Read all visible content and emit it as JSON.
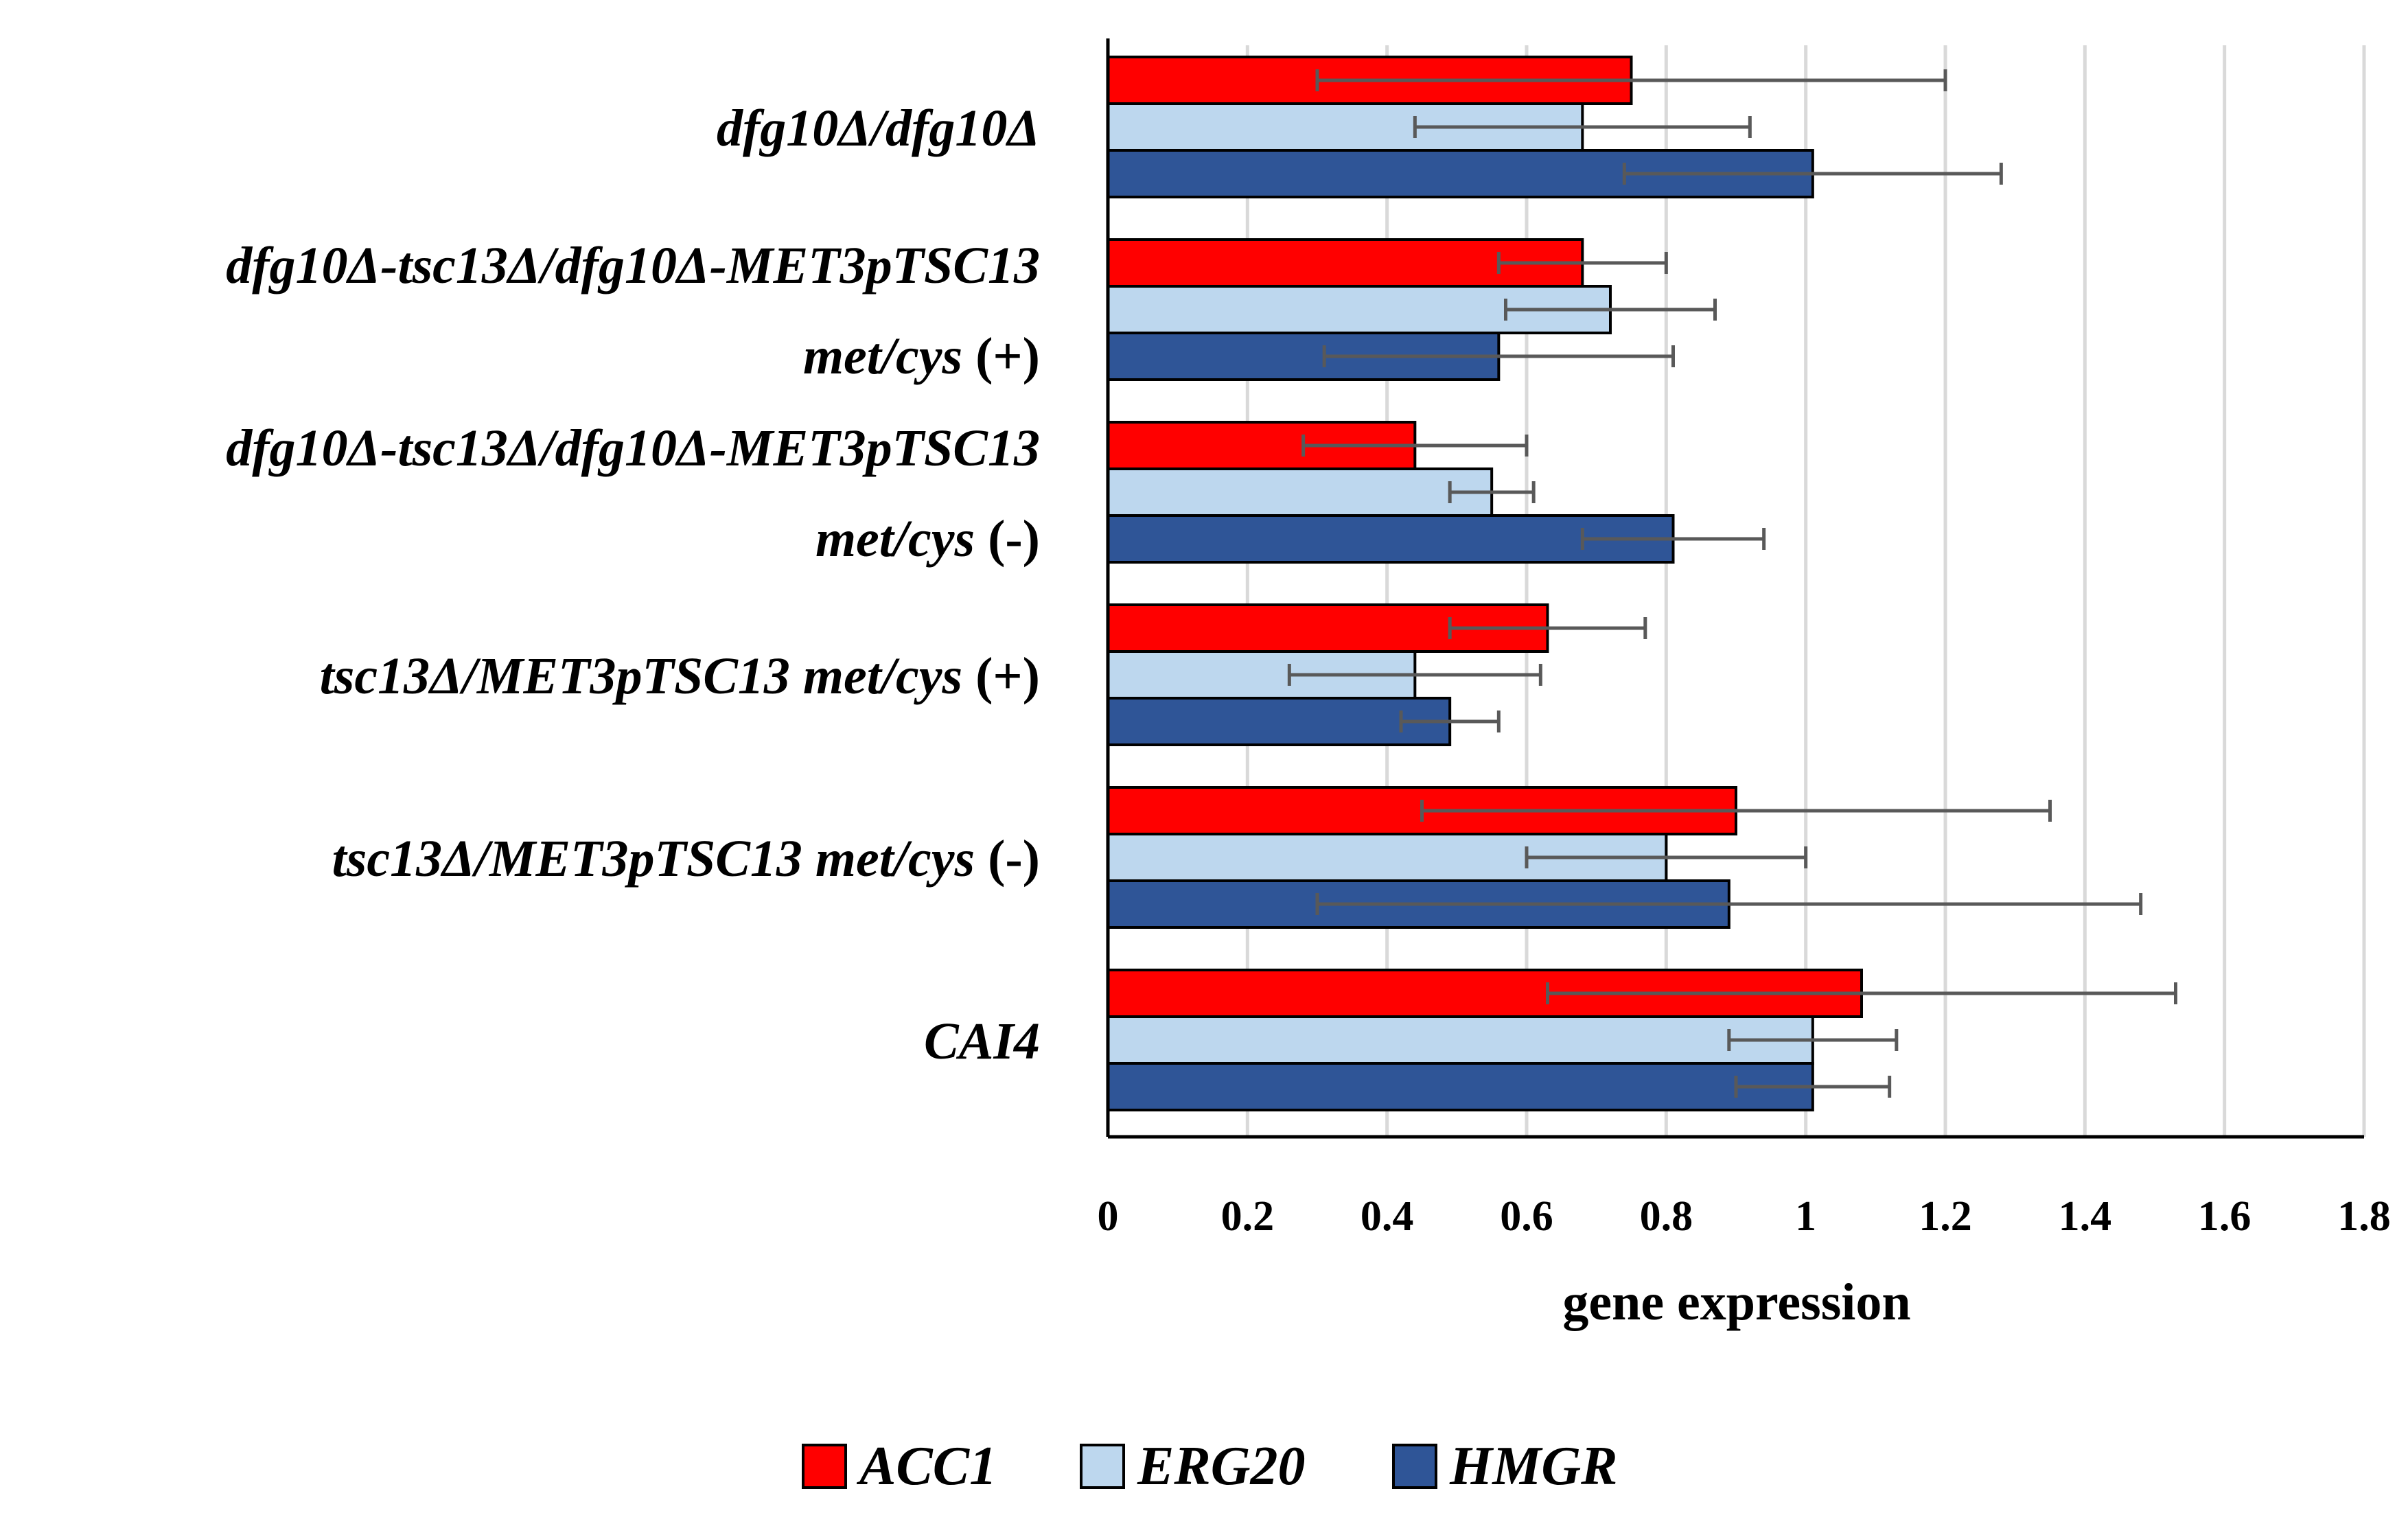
{
  "chart_data": {
    "type": "bar",
    "orientation": "horizontal",
    "title": "",
    "xlabel": "gene expression",
    "ylabel": "",
    "xlim": [
      0,
      1.8
    ],
    "xticks": [
      0,
      0.2,
      0.4,
      0.6,
      0.8,
      1,
      1.2,
      1.4,
      1.6,
      1.8
    ],
    "xtick_labels": [
      "0",
      "0.2",
      "0.4",
      "0.6",
      "0.8",
      "1",
      "1.2",
      "1.4",
      "1.6",
      "1.8"
    ],
    "grid": "vertical",
    "legend_position": "bottom-center",
    "categories": [
      {
        "lines": [
          [
            {
              "t": "dfg10Δ/dfg10Δ",
              "i": true
            }
          ]
        ]
      },
      {
        "lines": [
          [
            {
              "t": "dfg10Δ-tsc13Δ/dfg10Δ-MET3pTSC13",
              "i": true
            }
          ],
          [
            {
              "t": "met/cys ",
              "i": true
            },
            {
              "t": "(+)",
              "i": false
            }
          ]
        ]
      },
      {
        "lines": [
          [
            {
              "t": "dfg10Δ-tsc13Δ/dfg10Δ-MET3pTSC13",
              "i": true
            }
          ],
          [
            {
              "t": "met/cys ",
              "i": true
            },
            {
              "t": "(-)",
              "i": false
            }
          ]
        ]
      },
      {
        "lines": [
          [
            {
              "t": "tsc13Δ/MET3pTSC13  met/cys ",
              "i": true
            },
            {
              "t": "(+)",
              "i": false
            }
          ]
        ]
      },
      {
        "lines": [
          [
            {
              "t": "tsc13Δ/MET3pTSC13  met/cys ",
              "i": true
            },
            {
              "t": "(-)",
              "i": false
            }
          ]
        ]
      },
      {
        "lines": [
          [
            {
              "t": "CAI4",
              "i": true
            }
          ]
        ]
      }
    ],
    "series": [
      {
        "name": "ACC1",
        "color": "#ff0000",
        "values": [
          0.75,
          0.68,
          0.44,
          0.63,
          0.9,
          1.08
        ],
        "error_low": [
          0.3,
          0.56,
          0.28,
          0.49,
          0.45,
          0.63
        ],
        "error_high": [
          1.2,
          0.8,
          0.6,
          0.77,
          1.35,
          1.53
        ]
      },
      {
        "name": "ERG20",
        "color": "#bdd7ee",
        "values": [
          0.68,
          0.72,
          0.55,
          0.44,
          0.8,
          1.01
        ],
        "error_low": [
          0.44,
          0.57,
          0.49,
          0.26,
          0.6,
          0.89
        ],
        "error_high": [
          0.92,
          0.87,
          0.61,
          0.62,
          1.0,
          1.13
        ]
      },
      {
        "name": "HMGR",
        "color": "#2f5597",
        "values": [
          1.01,
          0.56,
          0.81,
          0.49,
          0.89,
          1.01
        ],
        "error_low": [
          0.74,
          0.31,
          0.68,
          0.42,
          0.3,
          0.9
        ],
        "error_high": [
          1.28,
          0.81,
          0.94,
          0.56,
          1.48,
          1.12
        ]
      }
    ]
  }
}
